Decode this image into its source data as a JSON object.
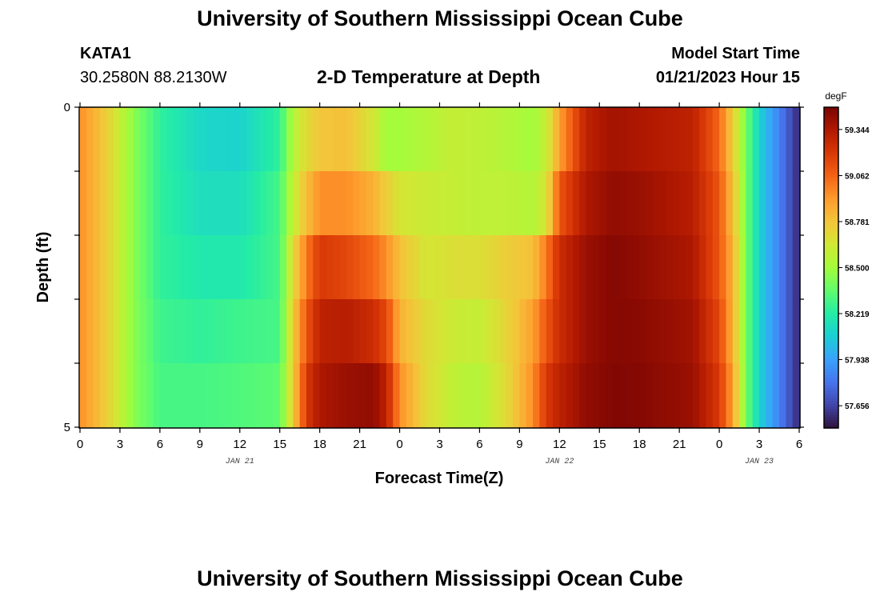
{
  "header": {
    "title": "University of Southern Mississippi Ocean Cube",
    "station_id": "KATA1",
    "station_coords": "30.2580N  88.2130W",
    "plot_title": "2-D Temperature at Depth",
    "start_time_label": "Model Start Time",
    "start_time_value": "01/21/2023 Hour 15"
  },
  "footer": {
    "title": "University of Southern Mississippi Ocean Cube"
  },
  "colors": {
    "scale": [
      "#30123b",
      "#4145ab",
      "#4675ed",
      "#39a2fc",
      "#1bcfd4",
      "#24eca6",
      "#61fc6c",
      "#a4fc3b",
      "#d1e834",
      "#f3c63a",
      "#fe9b2d",
      "#f36315",
      "#d93806",
      "#b11901",
      "#7a0403"
    ]
  },
  "chart_data": {
    "type": "heatmap",
    "title": "2-D Temperature at Depth",
    "xlabel": "Forecast Time(Z)",
    "ylabel": "Depth (ft)",
    "x_tick_labels": [
      "0",
      "3",
      "6",
      "9",
      "12",
      "15",
      "18",
      "21",
      "0",
      "3",
      "6",
      "9",
      "12",
      "15",
      "18",
      "21",
      "0",
      "3",
      "6"
    ],
    "x_date_labels": [
      {
        "label": "JAN 21",
        "hour_index": 12
      },
      {
        "label": "JAN 22",
        "hour_index": 36
      },
      {
        "label": "JAN 23",
        "hour_index": 51
      }
    ],
    "x_range_hours": [
      0,
      54
    ],
    "y_tick_labels": [
      "0",
      "5"
    ],
    "y_range": [
      0,
      5
    ],
    "colorbar_unit": "degF",
    "colorbar_ticks": [
      "57.656",
      "57.938",
      "58.219",
      "58.500",
      "58.781",
      "59.062",
      "59.344"
    ],
    "value_range": [
      57.52,
      59.48
    ],
    "depth_rows": 5,
    "time_keyframes": [
      {
        "t": 0,
        "rows": [
          58.95,
          58.95,
          58.95,
          58.95,
          58.95
        ]
      },
      {
        "t": 2,
        "rows": [
          58.75,
          58.75,
          58.75,
          58.75,
          58.75
        ]
      },
      {
        "t": 4,
        "rows": [
          58.45,
          58.45,
          58.45,
          58.45,
          58.45
        ]
      },
      {
        "t": 6,
        "rows": [
          58.25,
          58.25,
          58.25,
          58.28,
          58.3
        ]
      },
      {
        "t": 9,
        "rows": [
          58.12,
          58.15,
          58.2,
          58.25,
          58.3
        ]
      },
      {
        "t": 12,
        "rows": [
          58.1,
          58.15,
          58.2,
          58.28,
          58.32
        ]
      },
      {
        "t": 15,
        "rows": [
          58.25,
          58.3,
          58.3,
          58.3,
          58.35
        ]
      },
      {
        "t": 16,
        "rows": [
          58.55,
          58.6,
          58.7,
          58.75,
          58.75
        ]
      },
      {
        "t": 17,
        "rows": [
          58.7,
          58.8,
          59.0,
          59.1,
          59.2
        ]
      },
      {
        "t": 18,
        "rows": [
          58.78,
          58.95,
          59.2,
          59.3,
          59.35
        ]
      },
      {
        "t": 20,
        "rows": [
          58.8,
          58.95,
          59.15,
          59.32,
          59.4
        ]
      },
      {
        "t": 22,
        "rows": [
          58.65,
          58.85,
          59.05,
          59.25,
          59.42
        ]
      },
      {
        "t": 23,
        "rows": [
          58.5,
          58.75,
          58.95,
          59.15,
          59.3
        ]
      },
      {
        "t": 24,
        "rows": [
          58.5,
          58.65,
          58.8,
          58.85,
          58.95
        ]
      },
      {
        "t": 26,
        "rows": [
          58.55,
          58.62,
          58.65,
          58.7,
          58.7
        ]
      },
      {
        "t": 28,
        "rows": [
          58.6,
          58.6,
          58.68,
          58.62,
          58.58
        ]
      },
      {
        "t": 30,
        "rows": [
          58.58,
          58.58,
          58.68,
          58.6,
          58.55
        ]
      },
      {
        "t": 32,
        "rows": [
          58.55,
          58.58,
          58.75,
          58.72,
          58.7
        ]
      },
      {
        "t": 34,
        "rows": [
          58.5,
          58.55,
          58.8,
          58.9,
          58.95
        ]
      },
      {
        "t": 35,
        "rows": [
          58.6,
          58.65,
          59.0,
          59.1,
          59.2
        ]
      },
      {
        "t": 36,
        "rows": [
          58.9,
          59.1,
          59.25,
          59.25,
          59.3
        ]
      },
      {
        "t": 38,
        "rows": [
          59.3,
          59.35,
          59.4,
          59.4,
          59.42
        ]
      },
      {
        "t": 40,
        "rows": [
          59.38,
          59.42,
          59.45,
          59.45,
          59.46
        ]
      },
      {
        "t": 42,
        "rows": [
          59.35,
          59.4,
          59.42,
          59.44,
          59.45
        ]
      },
      {
        "t": 46,
        "rows": [
          59.3,
          59.32,
          59.35,
          59.38,
          59.4
        ]
      },
      {
        "t": 48,
        "rows": [
          59.05,
          59.1,
          59.1,
          59.15,
          59.2
        ]
      },
      {
        "t": 49,
        "rows": [
          58.75,
          58.8,
          58.85,
          58.85,
          58.9
        ]
      },
      {
        "t": 50,
        "rows": [
          58.4,
          58.4,
          58.4,
          58.4,
          58.4
        ]
      },
      {
        "t": 51,
        "rows": [
          58.1,
          58.1,
          58.1,
          58.1,
          58.1
        ]
      },
      {
        "t": 53,
        "rows": [
          57.75,
          57.75,
          57.75,
          57.75,
          57.75
        ]
      },
      {
        "t": 54,
        "rows": [
          57.58,
          57.58,
          57.58,
          57.58,
          57.58
        ]
      }
    ]
  }
}
